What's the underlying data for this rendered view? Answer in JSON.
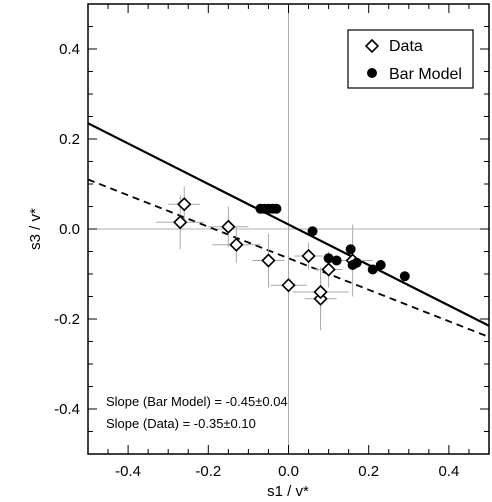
{
  "chart_data": {
    "type": "scatter",
    "title": "",
    "xlabel": "s1 / v*",
    "ylabel": "s3 / v*",
    "xlim": [
      -0.5,
      0.5
    ],
    "ylim": [
      -0.5,
      0.5
    ],
    "x_ticks": [
      "-0.4",
      "-0.2",
      "0.0",
      "0.2",
      "0.4"
    ],
    "y_ticks": [
      "-0.4",
      "-0.2",
      "0.0",
      "0.2",
      "0.4"
    ],
    "x_tick_values": [
      -0.4,
      -0.2,
      0.0,
      0.2,
      0.4
    ],
    "y_tick_values": [
      -0.4,
      -0.2,
      0.0,
      0.2,
      0.4
    ],
    "zero_lines": true,
    "legend_position": "top-right",
    "series": [
      {
        "name": "Data",
        "marker": "open-diamond",
        "color": "#000000",
        "points": [
          {
            "x": -0.27,
            "y": 0.015,
            "xerr": 0.06,
            "yerr": 0.06
          },
          {
            "x": -0.26,
            "y": 0.055,
            "xerr": 0.04,
            "yerr": 0.04
          },
          {
            "x": -0.15,
            "y": 0.005,
            "xerr": 0.05,
            "yerr": 0.045
          },
          {
            "x": -0.13,
            "y": -0.035,
            "xerr": 0.06,
            "yerr": 0.04
          },
          {
            "x": -0.05,
            "y": -0.07,
            "xerr": 0.04,
            "yerr": 0.06
          },
          {
            "x": 0.0,
            "y": -0.125,
            "xerr": 0.045,
            "yerr": 0.065
          },
          {
            "x": 0.05,
            "y": -0.06,
            "xerr": 0.035,
            "yerr": 0.03
          },
          {
            "x": 0.08,
            "y": -0.155,
            "xerr": 0.04,
            "yerr": 0.07
          },
          {
            "x": 0.08,
            "y": -0.14,
            "xerr": 0.07,
            "yerr": 0.05
          },
          {
            "x": 0.1,
            "y": -0.09,
            "xerr": 0.035,
            "yerr": 0.04
          },
          {
            "x": 0.16,
            "y": -0.07,
            "xerr": 0.05,
            "yerr": 0.08
          }
        ]
      },
      {
        "name": "Bar Model",
        "marker": "filled-circle",
        "color": "#000000",
        "points": [
          {
            "x": -0.07,
            "y": 0.045
          },
          {
            "x": -0.06,
            "y": 0.045
          },
          {
            "x": -0.05,
            "y": 0.045
          },
          {
            "x": -0.04,
            "y": 0.045
          },
          {
            "x": -0.03,
            "y": 0.045
          },
          {
            "x": 0.06,
            "y": -0.005
          },
          {
            "x": 0.1,
            "y": -0.065
          },
          {
            "x": 0.12,
            "y": -0.07
          },
          {
            "x": 0.155,
            "y": -0.045
          },
          {
            "x": 0.16,
            "y": -0.08
          },
          {
            "x": 0.17,
            "y": -0.075
          },
          {
            "x": 0.21,
            "y": -0.09
          },
          {
            "x": 0.23,
            "y": -0.08
          },
          {
            "x": 0.29,
            "y": -0.105
          }
        ]
      }
    ],
    "fit_lines": [
      {
        "label": "Bar Model fit",
        "style": "solid",
        "x": [
          -0.5,
          0.5
        ],
        "y": [
          0.235,
          -0.215
        ]
      },
      {
        "label": "Data fit",
        "style": "dashed",
        "x": [
          -0.5,
          0.5
        ],
        "y": [
          0.11,
          -0.24
        ]
      }
    ],
    "annotations": [
      "Slope (Bar Model) = -0.45±0.04",
      "Slope (Data) = -0.35±0.10"
    ],
    "legend": [
      "Data",
      "Bar Model"
    ]
  }
}
